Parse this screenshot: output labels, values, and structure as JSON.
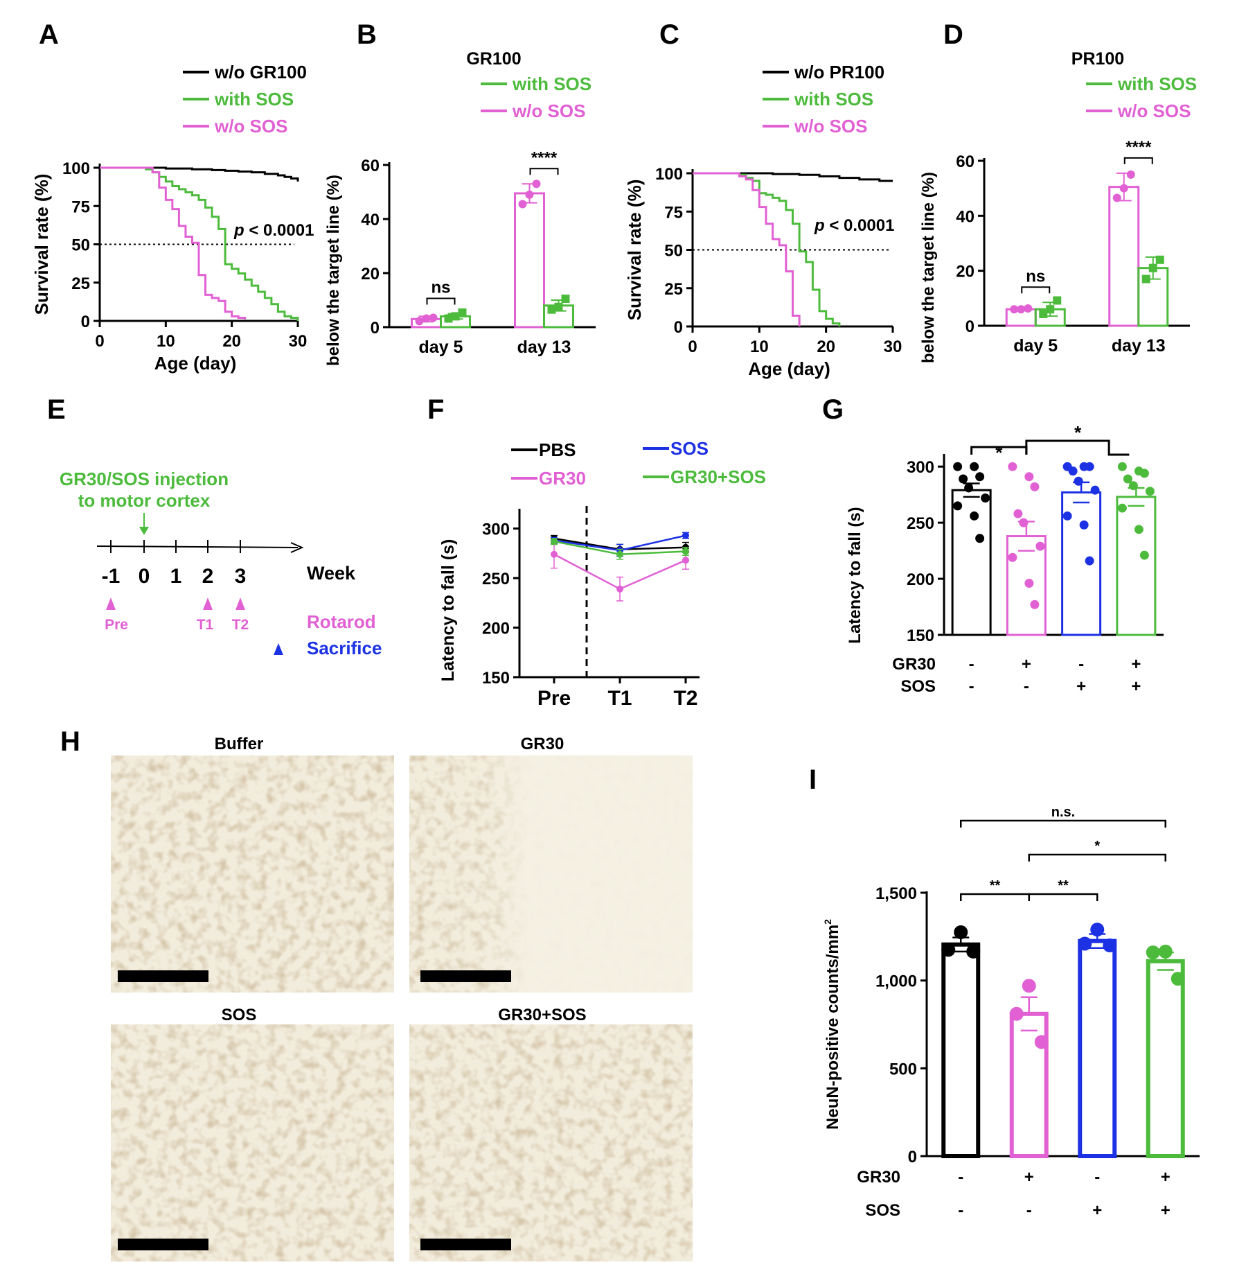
{
  "chart_data": [
    {
      "panel": "A",
      "type": "line",
      "xlabel": "Age (day)",
      "ylabel": "Survival rate (%)",
      "xlim": [
        0,
        30
      ],
      "ylim": [
        0,
        100
      ],
      "xticks": [
        "0",
        "10",
        "20",
        "30"
      ],
      "yticks": [
        "0",
        "25",
        "50",
        "75",
        "100"
      ],
      "annotation": "p < 0.0001",
      "series": [
        {
          "name": "w/o GR100",
          "color": "#000000",
          "x": [
            0,
            6,
            10,
            14,
            17,
            19,
            21,
            23,
            25,
            27,
            28,
            29,
            30
          ],
          "y": [
            100,
            100,
            99.5,
            99,
            98.5,
            98,
            97.5,
            97,
            96,
            95,
            94,
            93,
            91
          ]
        },
        {
          "name": "with SOS",
          "color": "#4cbb3c",
          "x": [
            0,
            5,
            7,
            8,
            9,
            10,
            11,
            12,
            13,
            14,
            15,
            16,
            17,
            18,
            19,
            20,
            21,
            22,
            23,
            24,
            25,
            26,
            27,
            28,
            29,
            30
          ],
          "y": [
            100,
            100,
            99,
            97,
            94,
            91,
            88,
            86,
            84,
            82,
            79,
            74,
            68,
            60,
            37,
            34,
            31,
            27,
            23,
            19,
            15,
            11,
            6,
            3,
            2,
            0
          ]
        },
        {
          "name": "w/o SOS",
          "color": "#e160d3",
          "x": [
            0,
            6,
            8,
            9,
            10,
            11,
            12,
            13,
            14,
            15,
            16,
            17,
            18,
            19,
            20,
            21,
            22
          ],
          "y": [
            100,
            100,
            97,
            87,
            79,
            73,
            62,
            55,
            51,
            30,
            17,
            15,
            13,
            6,
            3,
            2,
            1
          ]
        }
      ]
    },
    {
      "panel": "B",
      "type": "bar",
      "title": "GR100",
      "ylabel": "below the target line (%)",
      "ylim": [
        0,
        60
      ],
      "categories": [
        "day 5",
        "day 13"
      ],
      "yticks": [
        "0",
        "20",
        "40",
        "60"
      ],
      "series": [
        {
          "name": "w/o SOS",
          "color": "#e160d3",
          "values": [
            3,
            49.5
          ],
          "errors": [
            1,
            3.5
          ],
          "points": [
            [
              2.2,
              3.2,
              3.5
            ],
            [
              45.5,
              49,
              53
            ]
          ]
        },
        {
          "name": "with SOS",
          "color": "#4cbb3c",
          "values": [
            4,
            8
          ],
          "errors": [
            1,
            2
          ],
          "points": [
            [
              3.2,
              4,
              5.4
            ],
            [
              6.5,
              7.5,
              10.5
            ]
          ]
        }
      ],
      "significance": [
        "ns",
        "****"
      ]
    },
    {
      "panel": "C",
      "type": "line",
      "xlabel": "Age (day)",
      "ylabel": "Survival rate (%)",
      "xlim": [
        0,
        30
      ],
      "ylim": [
        0,
        100
      ],
      "xticks": [
        "0",
        "10",
        "20",
        "30"
      ],
      "yticks": [
        "0",
        "25",
        "50",
        "75",
        "100"
      ],
      "annotation": "p < 0.0001",
      "series": [
        {
          "name": "w/o PR100",
          "color": "#000000",
          "x": [
            0,
            8,
            12,
            16,
            19,
            22,
            25,
            28,
            30
          ],
          "y": [
            100,
            100,
            99.5,
            99,
            98,
            97,
            96,
            95,
            95
          ]
        },
        {
          "name": "with SOS",
          "color": "#4cbb3c",
          "x": [
            0,
            5,
            7,
            8,
            9,
            10,
            11,
            12,
            13,
            14,
            15,
            16,
            17,
            18,
            19,
            20,
            21,
            22
          ],
          "y": [
            100,
            100,
            99,
            97,
            95,
            87,
            86,
            84,
            82,
            76,
            67,
            49,
            42,
            24,
            10,
            5,
            2,
            0
          ]
        },
        {
          "name": "w/o SOS",
          "color": "#e160d3",
          "x": [
            0,
            5,
            7,
            8,
            9,
            10,
            11,
            12,
            13,
            14,
            15,
            16
          ],
          "y": [
            100,
            100,
            98,
            96,
            89,
            78,
            67,
            57,
            53,
            36,
            7,
            0
          ]
        }
      ]
    },
    {
      "panel": "D",
      "type": "bar",
      "title": "PR100",
      "ylabel": "below the target line (%)",
      "ylim": [
        0,
        60
      ],
      "categories": [
        "day 5",
        "day 13"
      ],
      "yticks": [
        "0",
        "20",
        "40",
        "60"
      ],
      "series": [
        {
          "name": "w/o SOS",
          "color": "#e160d3",
          "values": [
            6,
            50.5
          ],
          "errors": [
            0.5,
            5
          ],
          "points": [
            [
              6,
              6,
              6.3
            ],
            [
              46.5,
              50,
              55
            ]
          ]
        },
        {
          "name": "with SOS",
          "color": "#4cbb3c",
          "values": [
            6,
            21
          ],
          "errors": [
            2.5,
            4
          ],
          "points": [
            [
              4.3,
              6,
              9.2
            ],
            [
              17,
              21,
              24
            ]
          ]
        }
      ],
      "significance": [
        "ns",
        "****"
      ]
    },
    {
      "panel": "F",
      "type": "line",
      "ylabel": "Latency to fall (s)",
      "ylim": [
        150,
        320
      ],
      "categories": [
        "Pre",
        "T1",
        "T2"
      ],
      "yticks": [
        "150",
        "200",
        "250",
        "300"
      ],
      "series": [
        {
          "name": "PBS",
          "color": "#000000",
          "values": [
            290,
            279,
            281
          ],
          "errors": [
            3,
            5,
            5
          ]
        },
        {
          "name": "SOS",
          "color": "#1c31e3",
          "values": [
            288,
            278,
            293
          ],
          "errors": [
            3,
            6,
            3
          ]
        },
        {
          "name": "GR30",
          "color": "#e160d3",
          "values": [
            274,
            239,
            268
          ],
          "errors": [
            14,
            12,
            9
          ]
        },
        {
          "name": "GR30+SOS",
          "color": "#4cbb3c",
          "values": [
            287,
            274,
            277
          ],
          "errors": [
            3,
            5,
            4
          ]
        }
      ]
    },
    {
      "panel": "G",
      "type": "bar",
      "ylabel": "Latency to fall (s)",
      "ylim": [
        150,
        310
      ],
      "yticks": [
        "150",
        "200",
        "250",
        "300"
      ],
      "rows": [
        {
          "label": "GR30",
          "values": [
            "-",
            "+",
            "-",
            "+"
          ]
        },
        {
          "label": "SOS",
          "values": [
            "-",
            "-",
            "+",
            "+"
          ]
        }
      ],
      "bars": [
        {
          "color": "#000000",
          "value": 279,
          "error": 6,
          "points": [
            300,
            300,
            291,
            289,
            281,
            272,
            265,
            256,
            236
          ]
        },
        {
          "color": "#e160d3",
          "value": 238,
          "error": 13,
          "points": [
            300,
            291,
            282,
            258,
            250,
            229,
            219,
            196,
            177
          ]
        },
        {
          "color": "#1c31e3",
          "value": 277,
          "error": 9,
          "points": [
            300,
            300,
            300,
            296,
            287,
            279,
            256,
            248,
            216
          ]
        },
        {
          "color": "#4cbb3c",
          "value": 273,
          "error": 8,
          "points": [
            300,
            296,
            294,
            289,
            283,
            278,
            263,
            244,
            221
          ]
        }
      ],
      "significance": [
        "*",
        "*"
      ]
    },
    {
      "panel": "I",
      "type": "bar",
      "ylabel": "NeuN-positive counts/mm",
      "ylabel_superscript": "2",
      "ylim": [
        0,
        1500
      ],
      "yticks": [
        "0",
        "500",
        "1,000",
        "1,500"
      ],
      "rows": [
        {
          "label": "GR30",
          "values": [
            "-",
            "+",
            "-",
            "+"
          ]
        },
        {
          "label": "SOS",
          "values": [
            "-",
            "-",
            "+",
            "+"
          ]
        }
      ],
      "bars": [
        {
          "color": "#000000",
          "value": 1205,
          "error": 40,
          "points": [
            1275,
            1175,
            1165
          ]
        },
        {
          "color": "#e160d3",
          "value": 810,
          "error": 95,
          "points": [
            970,
            810,
            650
          ]
        },
        {
          "color": "#1c31e3",
          "value": 1225,
          "error": 40,
          "points": [
            1290,
            1210,
            1200
          ]
        },
        {
          "color": "#4cbb3c",
          "value": 1110,
          "error": 50,
          "points": [
            1165,
            1160,
            1010
          ]
        }
      ],
      "significance": [
        "n.s.",
        "*",
        "**",
        "**"
      ]
    }
  ],
  "panels": {
    "A": "A",
    "B": "B",
    "C": "C",
    "D": "D",
    "E": "E",
    "F": "F",
    "G": "G",
    "H": "H",
    "I": "I"
  },
  "timeline": {
    "injection": "GR30/SOS injection",
    "injection2": "to motor cortex",
    "weeks": [
      "-1",
      "0",
      "1",
      "2",
      "3"
    ],
    "unit": "Week",
    "markers": [
      "Pre",
      "T1",
      "T2"
    ],
    "rotarod": "Rotarod",
    "sacrifice": "Sacrifice"
  },
  "micrographs": {
    "titles": [
      "Buffer",
      "GR30",
      "SOS",
      "GR30+SOS"
    ]
  }
}
